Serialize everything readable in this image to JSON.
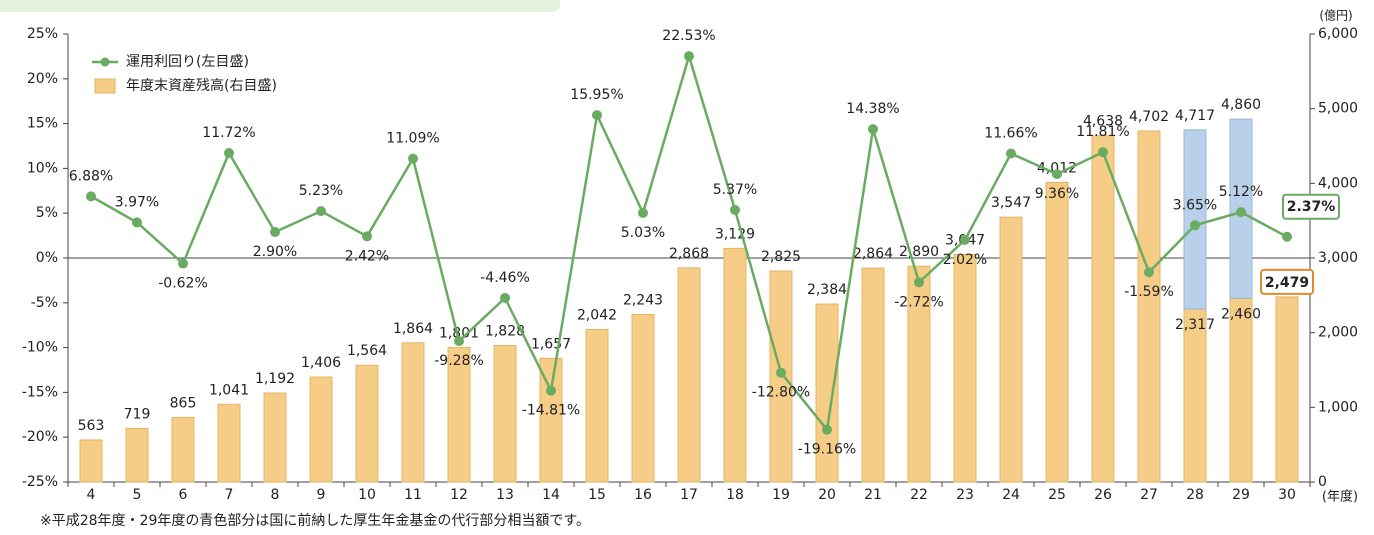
{
  "chart_data": {
    "type": "combo",
    "categories": [
      "4",
      "5",
      "6",
      "7",
      "8",
      "9",
      "10",
      "11",
      "12",
      "13",
      "14",
      "15",
      "16",
      "17",
      "18",
      "19",
      "20",
      "21",
      "22",
      "23",
      "24",
      "25",
      "26",
      "27",
      "28",
      "29",
      "30"
    ],
    "series": [
      {
        "name": "運用利回り(左目盛)",
        "type": "line",
        "axis": "y",
        "color": "#6aab62",
        "values": [
          6.88,
          3.97,
          -0.62,
          11.72,
          2.9,
          5.23,
          2.42,
          11.09,
          -9.28,
          -4.46,
          -14.81,
          15.95,
          5.03,
          22.53,
          5.37,
          -12.8,
          -19.16,
          14.38,
          -2.72,
          2.02,
          11.66,
          9.36,
          11.81,
          -1.59,
          3.65,
          5.12,
          2.37
        ],
        "value_labels": [
          "6.88%",
          "3.97%",
          "-0.62%",
          "11.72%",
          "2.90%",
          "5.23%",
          "2.42%",
          "11.09%",
          "-9.28%",
          "-4.46%",
          "-14.81%",
          "15.95%",
          "5.03%",
          "22.53%",
          "5.37%",
          "-12.80%",
          "-19.16%",
          "14.38%",
          "-2.72%",
          "2.02%",
          "11.66%",
          "9.36%",
          "11.81%",
          "-1.59%",
          "3.65%",
          "5.12%",
          "2.37%"
        ]
      },
      {
        "name": "年度末資産残高(右目盛)",
        "type": "bar",
        "axis": "y2",
        "color": "#f6cd87",
        "values": [
          563,
          719,
          865,
          1041,
          1192,
          1406,
          1564,
          1864,
          1801,
          1828,
          1657,
          2042,
          2243,
          2868,
          3129,
          2825,
          2384,
          2864,
          2890,
          3047,
          3547,
          4012,
          4638,
          4702,
          2317,
          2460,
          2479
        ],
        "value_labels": [
          "563",
          "719",
          "865",
          "1,041",
          "1,192",
          "1,406",
          "1,564",
          "1,864",
          "1,801",
          "1,828",
          "1,657",
          "2,042",
          "2,243",
          "2,868",
          "3,129",
          "2,825",
          "2,384",
          "2,864",
          "2,890",
          "3,047",
          "3,547",
          "4,012",
          "4,638",
          "4,702",
          "2,317",
          "2,460",
          "2,479"
        ]
      },
      {
        "type": "bar",
        "axis": "y2",
        "color": "#b8d0ea",
        "values": [
          null,
          null,
          null,
          null,
          null,
          null,
          null,
          null,
          null,
          null,
          null,
          null,
          null,
          null,
          null,
          null,
          null,
          null,
          null,
          null,
          null,
          null,
          null,
          null,
          2400,
          2400,
          null
        ]
      }
    ],
    "totals": [
      null,
      null,
      null,
      null,
      null,
      null,
      null,
      null,
      null,
      null,
      null,
      null,
      null,
      null,
      null,
      null,
      null,
      null,
      null,
      null,
      null,
      null,
      null,
      null,
      4717,
      4860,
      null
    ],
    "total_labels": [
      null,
      null,
      null,
      null,
      null,
      null,
      null,
      null,
      null,
      null,
      null,
      null,
      null,
      null,
      null,
      null,
      null,
      null,
      null,
      null,
      null,
      null,
      null,
      null,
      "4,717",
      "4,860",
      null
    ],
    "ylim": [
      -25,
      25
    ],
    "yticks": [
      {
        "value": 25,
        "label": "25%"
      },
      {
        "value": 20,
        "label": "20%"
      },
      {
        "value": 15,
        "label": "15%"
      },
      {
        "value": 10,
        "label": "10%"
      },
      {
        "value": 5,
        "label": "5%"
      },
      {
        "value": 0,
        "label": "0%"
      },
      {
        "value": -5,
        "label": "-5%"
      },
      {
        "value": -10,
        "label": "-10%"
      },
      {
        "value": -15,
        "label": "-15%"
      },
      {
        "value": -20,
        "label": "-20%"
      },
      {
        "value": -25,
        "label": "-25%"
      }
    ],
    "y2lim": [
      0,
      6000
    ],
    "y2ticks": [
      0,
      {
        "value": 1000,
        "label": "1,000"
      },
      {
        "value": 2000,
        "label": "2,000"
      },
      {
        "value": 3000,
        "label": "3,000"
      },
      {
        "value": 4000,
        "label": "4,000"
      },
      {
        "value": 5000,
        "label": "5,000"
      },
      {
        "value": 6000,
        "label": "6,000"
      }
    ],
    "y2_unit": "(億円)",
    "x_unit": "(年度)",
    "note": "※平成28年度・29年度の青色部分は国に前納した厚生年金基金の代行部分相当額です。"
  }
}
